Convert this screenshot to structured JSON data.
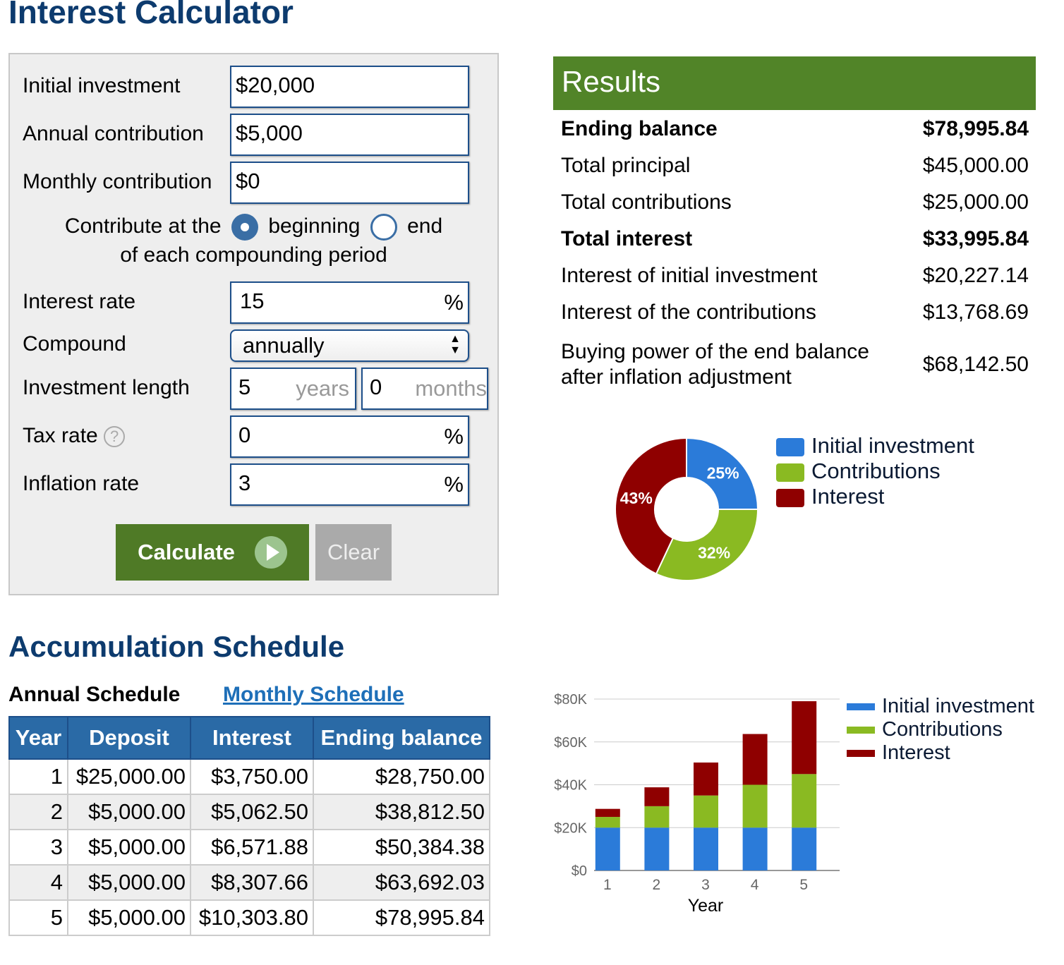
{
  "title": "Interest Calculator",
  "form": {
    "initial_label": "Initial investment",
    "initial_value": "$20,000",
    "annual_label": "Annual contribution",
    "annual_value": "$5,000",
    "monthly_label": "Monthly contribution",
    "monthly_value": "$0",
    "contribute_prefix": "Contribute at the",
    "opt_beginning": "beginning",
    "opt_end": "end",
    "contribute_suffix": "of each compounding period",
    "selected": "beginning",
    "rate_label": "Interest rate",
    "rate_value": "15",
    "percent": "%",
    "compound_label": "Compound",
    "compound_value": "annually",
    "length_label": "Investment length",
    "years_value": "5",
    "years_unit": "years",
    "months_value": "0",
    "months_unit": "months",
    "tax_label": "Tax rate",
    "tax_value": "0",
    "inflation_label": "Inflation rate",
    "inflation_value": "3",
    "calculate": "Calculate",
    "clear": "Clear"
  },
  "results": {
    "header": "Results",
    "rows": [
      {
        "label": "Ending balance",
        "value": "$78,995.84",
        "bold": true
      },
      {
        "label": "Total principal",
        "value": "$45,000.00"
      },
      {
        "label": "Total contributions",
        "value": "$25,000.00"
      },
      {
        "label": "Total interest",
        "value": "$33,995.84",
        "bold": true
      },
      {
        "label": "Interest of initial investment",
        "value": "$20,227.14"
      },
      {
        "label": "Interest of the contributions",
        "value": "$13,768.69"
      }
    ],
    "buying_label_1": "Buying power of the end balance",
    "buying_label_2": "after inflation adjustment",
    "buying_value": "$68,142.50"
  },
  "colors": {
    "blue": "#2b7bd9",
    "green": "#8aba22",
    "red": "#8f0000",
    "brand": "#518428",
    "title": "#0d3b6e"
  },
  "schedule": {
    "title": "Accumulation Schedule",
    "tab_annual": "Annual Schedule",
    "tab_monthly": "Monthly Schedule",
    "columns": [
      "Year",
      "Deposit",
      "Interest",
      "Ending balance"
    ],
    "rows": [
      [
        "1",
        "$25,000.00",
        "$3,750.00",
        "$28,750.00"
      ],
      [
        "2",
        "$5,000.00",
        "$5,062.50",
        "$38,812.50"
      ],
      [
        "3",
        "$5,000.00",
        "$6,571.88",
        "$50,384.38"
      ],
      [
        "4",
        "$5,000.00",
        "$8,307.66",
        "$63,692.03"
      ],
      [
        "5",
        "$5,000.00",
        "$10,303.80",
        "$78,995.84"
      ]
    ]
  },
  "chart_data": [
    {
      "type": "pie",
      "donut": true,
      "labels": [
        "Initial investment",
        "Contributions",
        "Interest"
      ],
      "values": [
        25,
        32,
        43
      ],
      "data_labels": [
        "25%",
        "32%",
        "43%"
      ],
      "legend": "right"
    },
    {
      "type": "bar",
      "stacked": true,
      "categories": [
        "1",
        "2",
        "3",
        "4",
        "5"
      ],
      "xlabel": "Year",
      "ylabel": "",
      "ylim": [
        0,
        80000
      ],
      "yticks": [
        "$0",
        "$20K",
        "$40K",
        "$60K",
        "$80K"
      ],
      "ytick_values": [
        0,
        20000,
        40000,
        60000,
        80000
      ],
      "legend": "right",
      "series": [
        {
          "name": "Initial investment",
          "values": [
            20000,
            20000,
            20000,
            20000,
            20000
          ]
        },
        {
          "name": "Contributions",
          "values": [
            5000,
            10000,
            15000,
            20000,
            25000
          ]
        },
        {
          "name": "Interest",
          "values": [
            3750,
            8812.5,
            15384.38,
            23692.03,
            33995.84
          ]
        }
      ]
    }
  ]
}
